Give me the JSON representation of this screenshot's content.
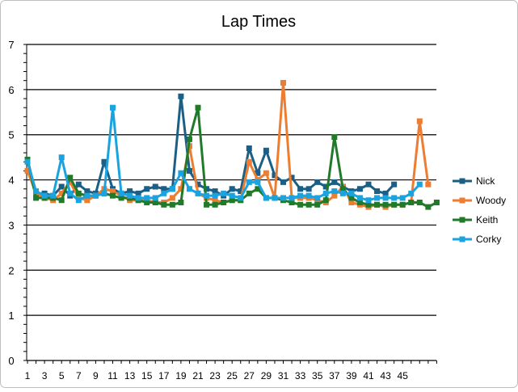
{
  "chart_data": {
    "type": "line",
    "title": "Lap Times",
    "xlabel": "",
    "ylabel": "",
    "ylim": [
      0,
      7
    ],
    "yticks": [
      0,
      1,
      2,
      3,
      4,
      5,
      6,
      7
    ],
    "xtick_labels": [
      "1",
      "3",
      "5",
      "7",
      "9",
      "11",
      "13",
      "15",
      "17",
      "19",
      "21",
      "23",
      "25",
      "27",
      "29",
      "31",
      "33",
      "35",
      "37",
      "39",
      "41",
      "43",
      "45"
    ],
    "grid": true,
    "legend_position": "right",
    "series": [
      {
        "name": "Nick",
        "color": "#1b5f86",
        "values": [
          4.45,
          3.7,
          3.7,
          3.65,
          3.85,
          3.65,
          3.9,
          3.75,
          3.7,
          4.4,
          3.8,
          3.7,
          3.75,
          3.7,
          3.8,
          3.85,
          3.8,
          3.8,
          5.85,
          4.2,
          3.9,
          3.8,
          3.75,
          3.65,
          3.8,
          3.75,
          4.7,
          4.15,
          4.65,
          4.1,
          3.95,
          4.05,
          3.8,
          3.8,
          3.95,
          3.85,
          3.95,
          3.85,
          3.75,
          3.8,
          3.9,
          3.75,
          3.7,
          3.9
        ]
      },
      {
        "name": "Woody",
        "color": "#ed7d31",
        "values": [
          4.2,
          3.7,
          3.6,
          3.55,
          3.7,
          3.95,
          3.6,
          3.55,
          3.65,
          3.8,
          3.75,
          3.65,
          3.55,
          3.55,
          3.55,
          3.5,
          3.5,
          3.6,
          3.8,
          4.75,
          3.7,
          3.6,
          3.55,
          3.5,
          3.55,
          3.55,
          4.4,
          4.0,
          4.15,
          3.6,
          6.15,
          3.6,
          3.6,
          3.6,
          3.55,
          3.5,
          3.65,
          3.85,
          3.5,
          3.45,
          3.4,
          3.45,
          3.4,
          3.45,
          3.45,
          3.5,
          5.3,
          3.9
        ]
      },
      {
        "name": "Keith",
        "color": "#217a2a",
        "values": [
          4.45,
          3.6,
          3.6,
          3.6,
          3.55,
          4.05,
          3.7,
          3.65,
          3.65,
          3.7,
          3.65,
          3.6,
          3.6,
          3.55,
          3.5,
          3.5,
          3.45,
          3.45,
          3.5,
          4.9,
          5.6,
          3.45,
          3.45,
          3.5,
          3.55,
          3.55,
          3.7,
          3.8,
          3.6,
          3.6,
          3.55,
          3.5,
          3.45,
          3.45,
          3.45,
          3.55,
          4.95,
          3.8,
          3.6,
          3.5,
          3.45,
          3.45,
          3.45,
          3.45,
          3.45,
          3.5,
          3.5,
          3.4,
          3.5
        ]
      },
      {
        "name": "Corky",
        "color": "#1aa3de",
        "values": [
          4.4,
          3.75,
          3.65,
          3.65,
          4.5,
          3.7,
          3.55,
          3.65,
          3.65,
          3.7,
          5.6,
          3.7,
          3.65,
          3.6,
          3.6,
          3.6,
          3.7,
          3.8,
          4.15,
          3.8,
          3.7,
          3.65,
          3.65,
          3.7,
          3.65,
          3.6,
          3.95,
          3.95,
          3.6,
          3.6,
          3.6,
          3.6,
          3.65,
          3.65,
          3.6,
          3.7,
          3.75,
          3.7,
          3.7,
          3.6,
          3.55,
          3.6,
          3.6,
          3.6,
          3.6,
          3.7,
          3.9
        ]
      }
    ]
  }
}
